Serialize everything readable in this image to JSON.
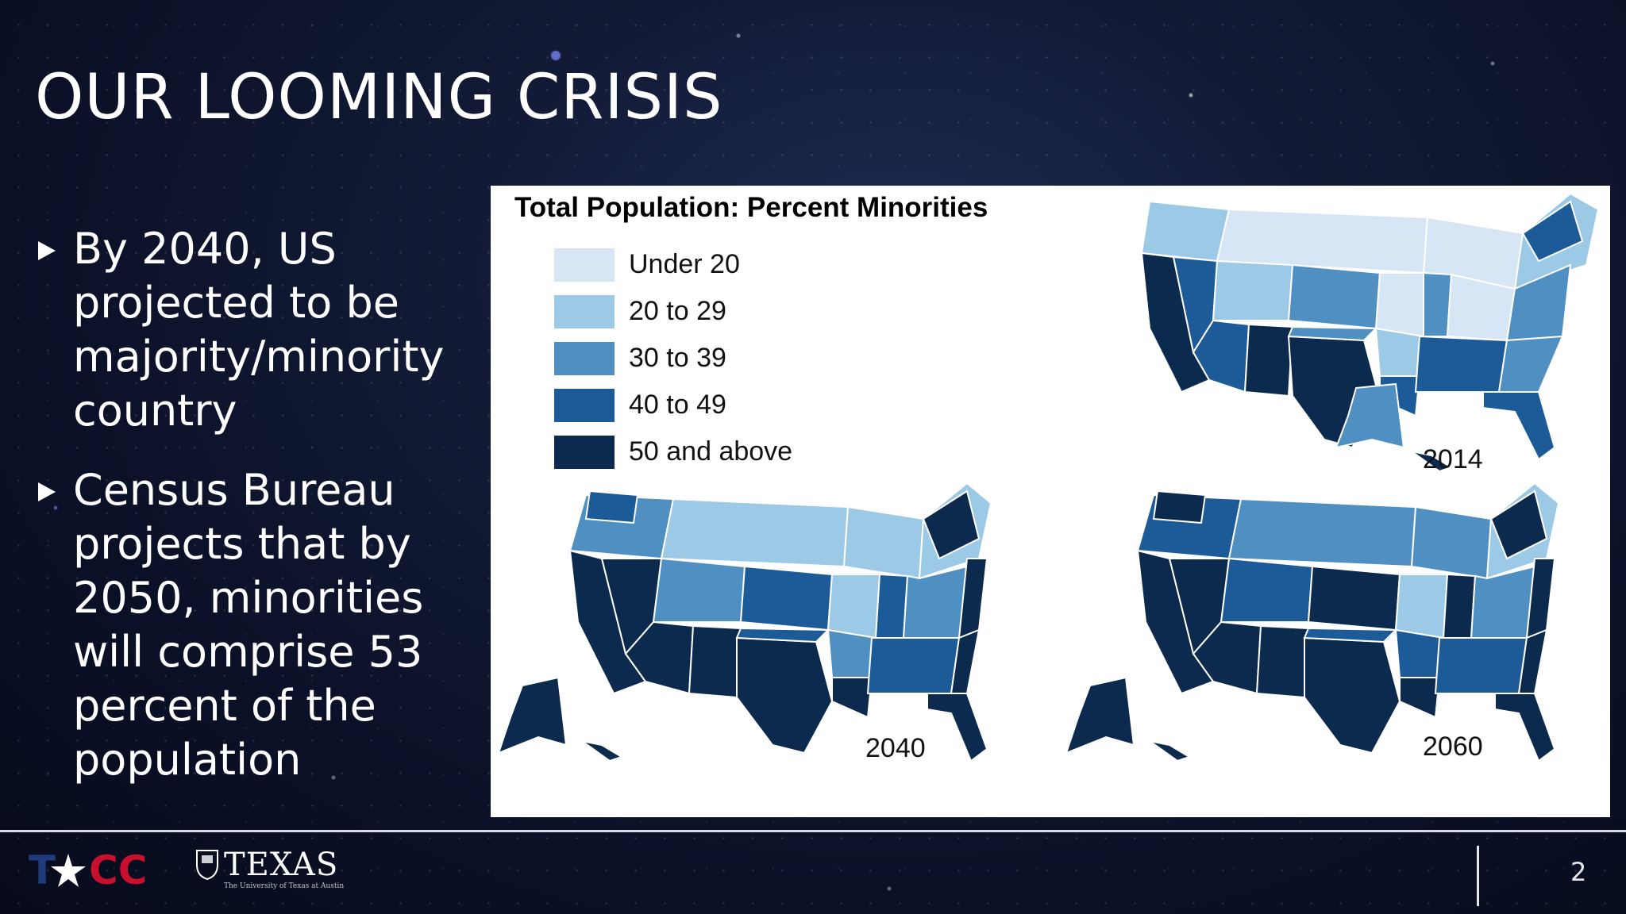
{
  "slide": {
    "title": "OUR LOOMING CRISIS",
    "bullets": [
      "By 2040, US projected to be majority/minority country",
      "Census Bureau projects that by 2050, minorities will comprise 53 percent of the population"
    ],
    "page_number": "2"
  },
  "figure": {
    "title": "Total Population: Percent Minorities",
    "legend": [
      {
        "label": "Under 20",
        "color": "#d6e6f4"
      },
      {
        "label": "20 to 29",
        "color": "#9ccae6"
      },
      {
        "label": "30 to 39",
        "color": "#4f8fc2"
      },
      {
        "label": "40 to 49",
        "color": "#1c5b97"
      },
      {
        "label": "50 and above",
        "color": "#0c2a4d"
      }
    ],
    "maps": [
      {
        "year": "2014"
      },
      {
        "year": "2040"
      },
      {
        "year": "2060"
      }
    ]
  },
  "footer": {
    "logo_tacc": "TACC",
    "logo_texas": "TEXAS",
    "logo_texas_sub": "The University of Texas at Austin"
  }
}
